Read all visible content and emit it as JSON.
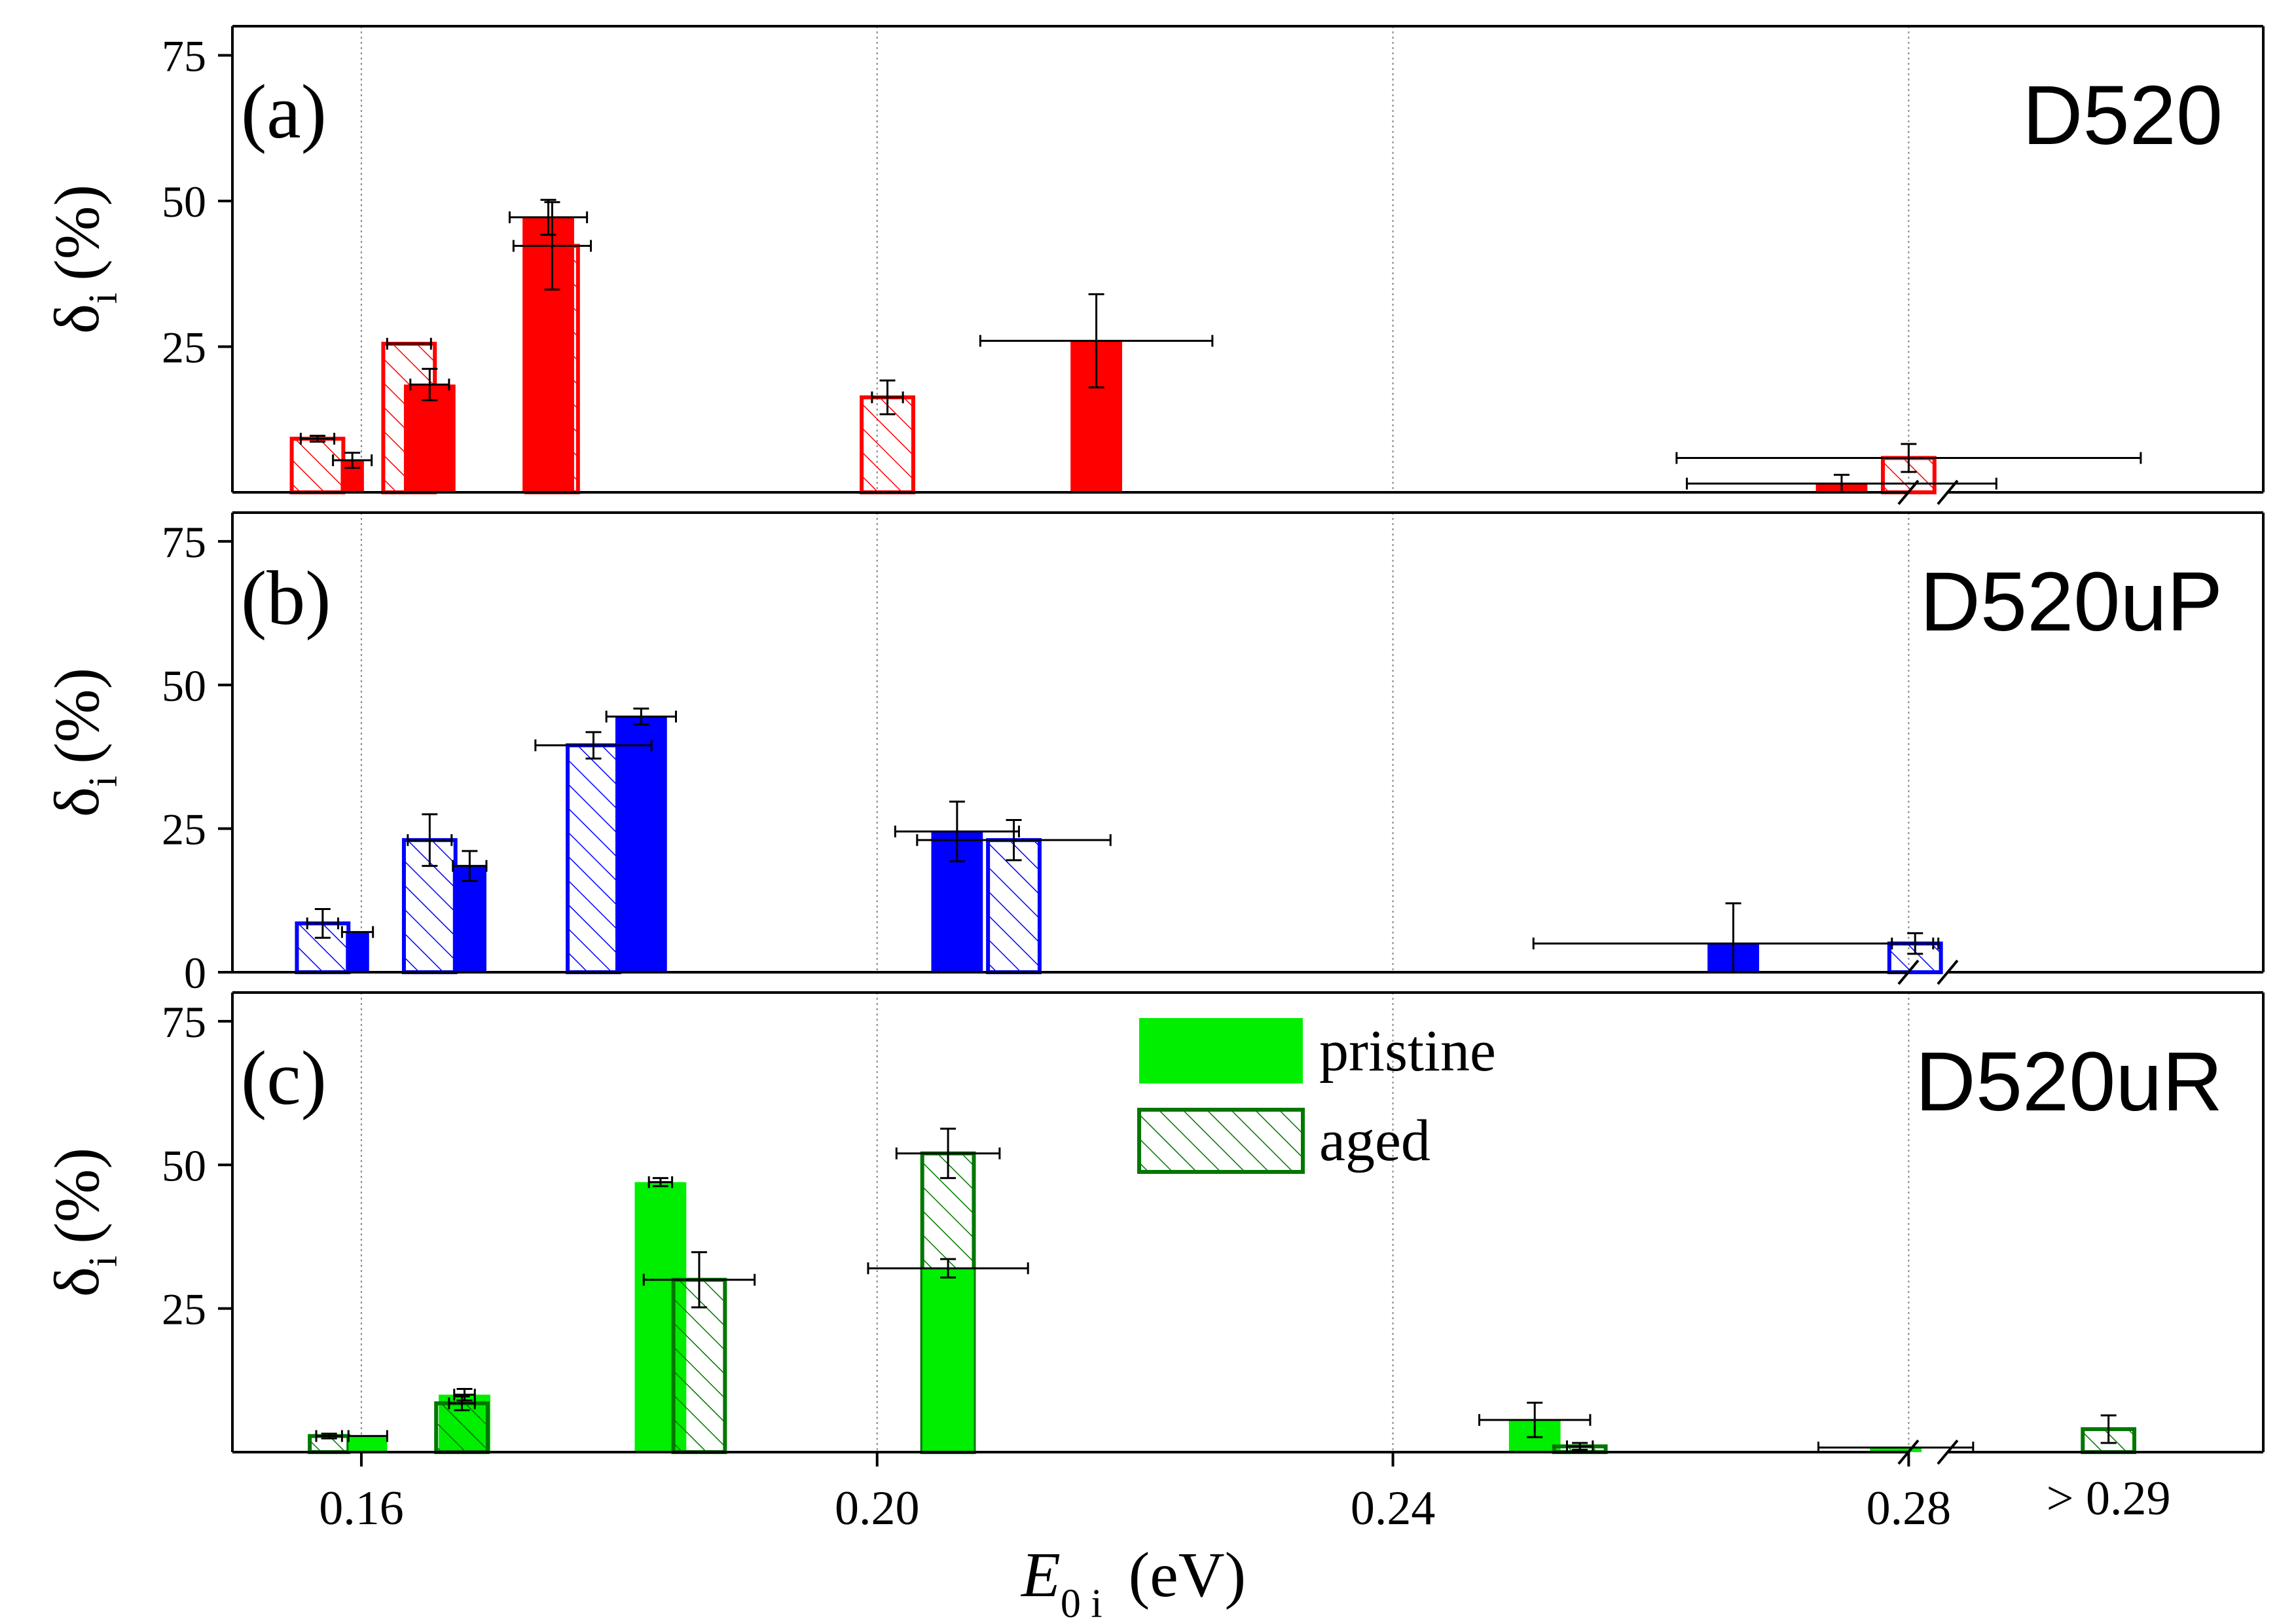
{
  "chart_data": {
    "type": "bar",
    "x_axis": {
      "label_main": "E",
      "label_sub": "0 i",
      "label_unit": "(eV)",
      "range": [
        0.15,
        0.3075
      ],
      "ticks": [
        0.16,
        0.2,
        0.24,
        0.28
      ],
      "tick_labels": [
        "0.16",
        "0.20",
        "0.24",
        "0.28"
      ],
      "break_label": "> 0.29",
      "break_at": 0.2815,
      "gridlines": [
        0.16,
        0.2,
        0.24,
        0.28
      ]
    },
    "y_axis": {
      "label_main": "δ",
      "label_sub": "i",
      "label_unit": "(%)",
      "range": [
        0,
        80
      ],
      "ticks": [
        0,
        25,
        50,
        75
      ]
    },
    "legend": {
      "placement": "top-center of panel (c)",
      "entries": [
        {
          "label": "pristine",
          "style": "solid"
        },
        {
          "label": "aged",
          "style": "hatched"
        }
      ]
    },
    "panels": [
      {
        "letter": "(a)",
        "name": "D520",
        "color": "#ff0000",
        "show_zero_tick": false,
        "bars": [
          {
            "x": 0.1566,
            "width": 0.004,
            "y": 9.2,
            "style": "hatched",
            "yerr": 0.5,
            "xerr": 0.0013
          },
          {
            "x": 0.1593,
            "width": 0.0018,
            "y": 5.5,
            "style": "solid",
            "yerr": 1.3,
            "xerr": 0.0015
          },
          {
            "x": 0.1637,
            "width": 0.004,
            "y": 25.5,
            "style": "hatched",
            "yerr": 0.0,
            "xerr": 0.0017
          },
          {
            "x": 0.1653,
            "width": 0.004,
            "y": 18.5,
            "style": "solid",
            "yerr": 2.7,
            "xerr": 0.0015
          },
          {
            "x": 0.1745,
            "width": 0.004,
            "y": 47.2,
            "style": "solid",
            "yerr": 3.0,
            "xerr": 0.003
          },
          {
            "x": 0.1748,
            "width": 0.004,
            "y": 42.3,
            "style": "hatched",
            "yerr": 7.5,
            "xerr": 0.003
          },
          {
            "x": 0.2008,
            "width": 0.004,
            "y": 16.3,
            "style": "hatched",
            "yerr": 2.9,
            "xerr": 0.0012
          },
          {
            "x": 0.217,
            "width": 0.004,
            "y": 26.0,
            "style": "solid",
            "yerr": 8.0,
            "xerr": 0.009
          },
          {
            "x": 0.2748,
            "width": 0.004,
            "y": 1.5,
            "style": "solid",
            "yerr": 1.5,
            "xerr": 0.012
          },
          {
            "x": 0.28,
            "width": 0.004,
            "y": 5.9,
            "style": "hatched",
            "yerr": 2.4,
            "xerr": 0.018
          }
        ]
      },
      {
        "letter": "(b)",
        "name": "D520uP",
        "color": "#0000ff",
        "show_zero_tick": true,
        "bars": [
          {
            "x": 0.157,
            "width": 0.004,
            "y": 8.5,
            "style": "hatched",
            "yerr": 2.5,
            "xerr": 0.0012
          },
          {
            "x": 0.1597,
            "width": 0.0018,
            "y": 7.0,
            "style": "solid",
            "yerr": 0.0,
            "xerr": 0.0012
          },
          {
            "x": 0.1653,
            "width": 0.004,
            "y": 23.0,
            "style": "hatched",
            "yerr": 4.5,
            "xerr": 0.0017
          },
          {
            "x": 0.1684,
            "width": 0.0026,
            "y": 18.5,
            "style": "solid",
            "yerr": 2.6,
            "xerr": 0.0013
          },
          {
            "x": 0.178,
            "width": 0.004,
            "y": 39.5,
            "style": "hatched",
            "yerr": 2.3,
            "xerr": 0.0045
          },
          {
            "x": 0.1817,
            "width": 0.004,
            "y": 44.5,
            "style": "solid",
            "yerr": 1.4,
            "xerr": 0.0027
          },
          {
            "x": 0.2062,
            "width": 0.004,
            "y": 24.5,
            "style": "solid",
            "yerr": 5.2,
            "xerr": 0.0048
          },
          {
            "x": 0.2106,
            "width": 0.004,
            "y": 23.0,
            "style": "hatched",
            "yerr": 3.5,
            "xerr": 0.0075
          },
          {
            "x": 0.2664,
            "width": 0.004,
            "y": 5.0,
            "style": "solid",
            "yerr": 7.0,
            "xerr": 0.0155
          },
          {
            "x": 0.2805,
            "width": 0.004,
            "y": 5.0,
            "style": "hatched",
            "yerr": 1.8,
            "xerr": 0.0018
          }
        ]
      },
      {
        "letter": "(c)",
        "name": "D520uR",
        "color": "#00ee00",
        "edge": "#007700",
        "show_zero_tick": false,
        "bars": [
          {
            "x": 0.1575,
            "width": 0.003,
            "y": 2.8,
            "style": "hatched",
            "yerr": 0.4,
            "xerr": 0.001
          },
          {
            "x": 0.1605,
            "width": 0.003,
            "y": 2.8,
            "style": "solid",
            "yerr": 0.0,
            "xerr": 0.0015
          },
          {
            "x": 0.168,
            "width": 0.004,
            "y": 10.0,
            "style": "solid",
            "yerr": 1.0,
            "xerr": 0.0008
          },
          {
            "x": 0.1678,
            "width": 0.004,
            "y": 8.5,
            "style": "hatched",
            "yerr": 1.2,
            "xerr": 0.001
          },
          {
            "x": 0.1832,
            "width": 0.004,
            "y": 47.0,
            "style": "solid",
            "yerr": 0.7,
            "xerr": 0.0009
          },
          {
            "x": 0.1862,
            "width": 0.004,
            "y": 30.0,
            "style": "hatched",
            "yerr": 4.8,
            "xerr": 0.0043
          },
          {
            "x": 0.2055,
            "width": 0.004,
            "y": 52.0,
            "style": "hatched",
            "yerr": 4.3,
            "xerr": 0.004
          },
          {
            "x": 0.2055,
            "width": 0.004,
            "y": 32.0,
            "style": "solid",
            "yerr": 1.6,
            "xerr": 0.0062
          },
          {
            "x": 0.251,
            "width": 0.004,
            "y": 5.6,
            "style": "solid",
            "yerr": 3.0,
            "xerr": 0.0043
          },
          {
            "x": 0.2545,
            "width": 0.004,
            "y": 1.0,
            "style": "hatched",
            "yerr": 0.6,
            "xerr": 0.001
          },
          {
            "x": 0.279,
            "width": 0.004,
            "y": 0.8,
            "style": "solid",
            "yerr": 0.0,
            "xerr": 0.006
          },
          {
            "x": 0.2955,
            "width": 0.004,
            "y": 4.0,
            "style": "hatched",
            "yerr": 2.4,
            "xerr": 0.0
          }
        ]
      }
    ]
  }
}
